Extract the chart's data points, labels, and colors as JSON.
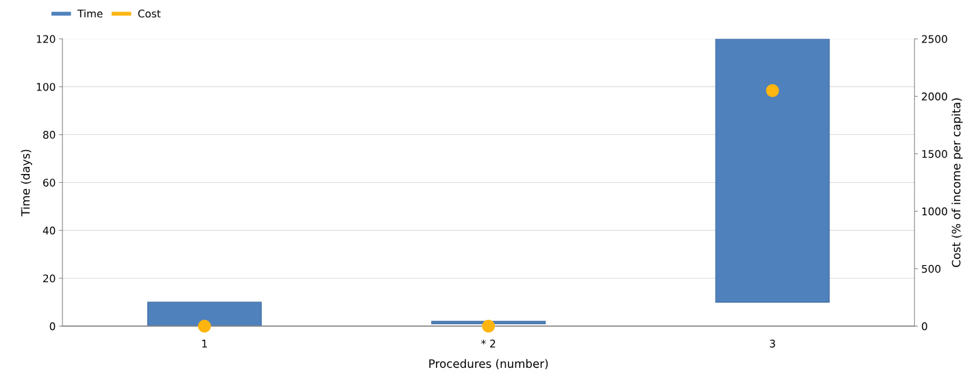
{
  "chart_data": {
    "type": "bar",
    "categories": [
      "1",
      "* 2",
      "3"
    ],
    "xlabel": "Procedures (number)",
    "ylabel": "Time (days)",
    "y2label": "Cost (% of income per capita)",
    "series": [
      {
        "name": "Time",
        "color": "#4f81bd",
        "values": [
          10,
          1,
          110
        ],
        "base": [
          0,
          1,
          10
        ]
      },
      {
        "name": "Cost",
        "type": "scatter",
        "axis": "y2",
        "color": "#ffb50f",
        "values": [
          0,
          0,
          2050
        ],
        "marker": "circle"
      }
    ],
    "ylim": [
      0,
      120
    ],
    "yticks": [
      0,
      20,
      40,
      60,
      80,
      100,
      120
    ],
    "y2lim": [
      0,
      2500
    ],
    "y2ticks": [
      0,
      500,
      1000,
      1500,
      2000,
      2500
    ],
    "grid": "y",
    "legend": "top left"
  }
}
